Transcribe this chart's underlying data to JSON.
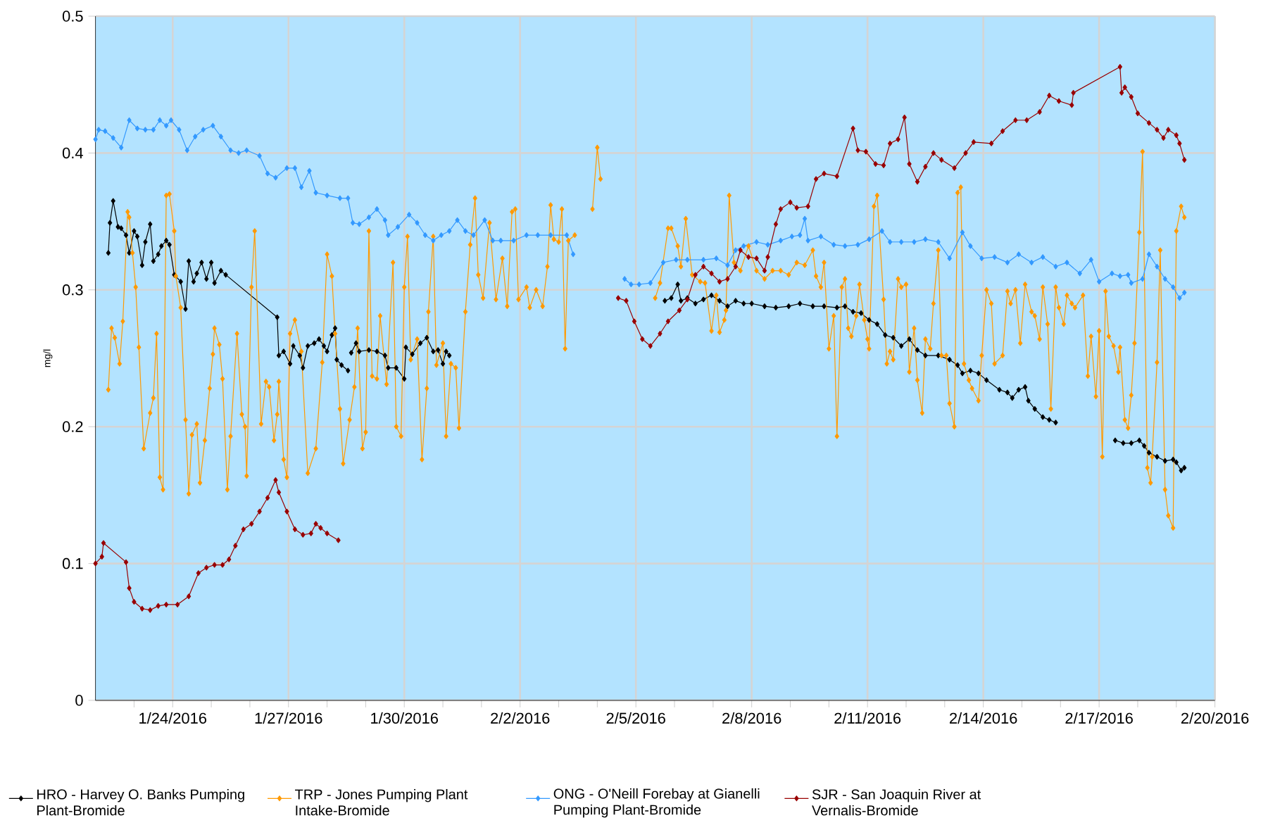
{
  "chart_data": {
    "type": "line",
    "ylabel": "mg/l",
    "xlim": [
      "2016-01-22",
      "2016-02-20"
    ],
    "xticks": [
      {
        "value": "2016-01-23",
        "label": null
      },
      {
        "value": "2016-01-24",
        "label": "1/24/2016"
      },
      {
        "value": "2016-01-25",
        "label": null
      },
      {
        "value": "2016-01-26",
        "label": null
      },
      {
        "value": "2016-01-27",
        "label": "1/27/2016"
      },
      {
        "value": "2016-01-28",
        "label": null
      },
      {
        "value": "2016-01-29",
        "label": null
      },
      {
        "value": "2016-01-30",
        "label": "1/30/2016"
      },
      {
        "value": "2016-01-31",
        "label": null
      },
      {
        "value": "2016-02-01",
        "label": null
      },
      {
        "value": "2016-02-02",
        "label": "2/2/2016"
      },
      {
        "value": "2016-02-03",
        "label": null
      },
      {
        "value": "2016-02-04",
        "label": null
      },
      {
        "value": "2016-02-05",
        "label": "2/5/2016"
      },
      {
        "value": "2016-02-06",
        "label": null
      },
      {
        "value": "2016-02-07",
        "label": null
      },
      {
        "value": "2016-02-08",
        "label": "2/8/2016"
      },
      {
        "value": "2016-02-09",
        "label": null
      },
      {
        "value": "2016-02-10",
        "label": null
      },
      {
        "value": "2016-02-11",
        "label": "2/11/2016"
      },
      {
        "value": "2016-02-12",
        "label": null
      },
      {
        "value": "2016-02-13",
        "label": null
      },
      {
        "value": "2016-02-14",
        "label": "2/14/2016"
      },
      {
        "value": "2016-02-15",
        "label": null
      },
      {
        "value": "2016-02-16",
        "label": null
      },
      {
        "value": "2016-02-17",
        "label": "2/17/2016"
      },
      {
        "value": "2016-02-18",
        "label": null
      },
      {
        "value": "2016-02-19",
        "label": null
      },
      {
        "value": "2016-02-20",
        "label": "2/20/2016"
      }
    ],
    "ylim": [
      0,
      0.5
    ],
    "yticks": [
      0,
      0.1,
      0.2,
      0.3,
      0.4,
      0.5
    ],
    "grid": true,
    "legend": "bottom",
    "marker": "diamond",
    "line_style": "solid",
    "series": [
      {
        "name": "HRO - Harvey O. Banks Pumping Plant-Bromide",
        "color": "#000000",
        "x": [
          "2016-01-22T08:00",
          "2016-01-22T09:00",
          "2016-01-22T11:00",
          "2016-01-22T14:00",
          "2016-01-22T16:00",
          "2016-01-22T19:00",
          "2016-01-22T21:00",
          "2016-01-23T00:00",
          "2016-01-23T02:00",
          "2016-01-23T05:00",
          "2016-01-23T07:00",
          "2016-01-23T10:00",
          "2016-01-23T12:00",
          "2016-01-23T15:00",
          "2016-01-23T17:00",
          "2016-01-23T20:00",
          "2016-01-23T22:00",
          "2016-01-24T01:00",
          "2016-01-24T05:00",
          "2016-01-24T08:00",
          "2016-01-24T10:00",
          "2016-01-24T13:00",
          "2016-01-24T15:00",
          "2016-01-24T18:00",
          "2016-01-24T21:00",
          "2016-01-25T00:00",
          "2016-01-25T02:00",
          "2016-01-25T06:00",
          "2016-01-25T09:00",
          "2016-01-26T17:00",
          "2016-01-26T18:00",
          "2016-01-26T21:00",
          "2016-01-27T01:00",
          "2016-01-27T03:00",
          "2016-01-27T07:00",
          "2016-01-27T09:00",
          "2016-01-27T12:00",
          "2016-01-27T16:00",
          "2016-01-27T19:00",
          "2016-01-27T22:00",
          "2016-01-28T00:00",
          "2016-01-28T03:00",
          "2016-01-28T05:00",
          "2016-01-28T06:00",
          "2016-01-28T09:00",
          "2016-01-28T13:00",
          "2016-01-28T14:00",
          "2016-01-28T15:00",
          "2016-01-28T18:00",
          "2016-01-28T20:00",
          "2016-01-29T02:00",
          "2016-01-29T07:00",
          "2016-01-29T12:00",
          "2016-01-29T14:00",
          "2016-01-29T19:00",
          "2016-01-30T00:00",
          "2016-01-30T01:00",
          "2016-01-30T05:00",
          "2016-01-30T10:00",
          "2016-01-30T14:00",
          "2016-01-30T18:00",
          "2016-01-30T21:00",
          "2016-01-31T00:00",
          "2016-01-31T02:00",
          "2016-01-31T04:00",
          "2016-02-03T00:00",
          "2016-02-05T18:00",
          "2016-02-05T22:00",
          "2016-02-06T02:00",
          "2016-02-06T04:00",
          "2016-02-06T08:00",
          "2016-02-06T13:00",
          "2016-02-06T18:00",
          "2016-02-06T23:00",
          "2016-02-07T04:00",
          "2016-02-07T09:00",
          "2016-02-07T14:00",
          "2016-02-07T19:00",
          "2016-02-08T00:00",
          "2016-02-08T08:00",
          "2016-02-08T15:00",
          "2016-02-08T23:00",
          "2016-02-09T06:00",
          "2016-02-09T14:00",
          "2016-02-09T21:00",
          "2016-02-10T05:00",
          "2016-02-10T10:00",
          "2016-02-10T15:00",
          "2016-02-10T20:00",
          "2016-02-11T01:00",
          "2016-02-11T06:00",
          "2016-02-11T11:00",
          "2016-02-11T16:00",
          "2016-02-11T21:00",
          "2016-02-12T02:00",
          "2016-02-12T07:00",
          "2016-02-12T12:00",
          "2016-02-12T20:00",
          "2016-02-13T03:00",
          "2016-02-13T08:00",
          "2016-02-13T11:00",
          "2016-02-13T16:00",
          "2016-02-13T21:00",
          "2016-02-14T02:00",
          "2016-02-14T10:00",
          "2016-02-14T15:00",
          "2016-02-14T18:00",
          "2016-02-14T22:00",
          "2016-02-15T02:00",
          "2016-02-15T04:00",
          "2016-02-15T08:00",
          "2016-02-15T13:00",
          "2016-02-15T17:00",
          "2016-02-15T21:00",
          "2016-02-16T12:00",
          "2016-02-17T10:00",
          "2016-02-17T15:00",
          "2016-02-17T20:00",
          "2016-02-18T01:00",
          "2016-02-18T04:00",
          "2016-02-18T07:00",
          "2016-02-18T12:00",
          "2016-02-18T17:00",
          "2016-02-18T22:00",
          "2016-02-19T00:00",
          "2016-02-19T03:00",
          "2016-02-19T05:00"
        ],
        "values": [
          0.327,
          0.349,
          0.365,
          0.346,
          0.345,
          0.34,
          0.327,
          0.343,
          0.339,
          0.318,
          0.335,
          0.348,
          0.321,
          0.326,
          0.332,
          0.336,
          0.333,
          0.311,
          0.306,
          0.286,
          0.321,
          0.306,
          0.312,
          0.32,
          0.308,
          0.32,
          0.305,
          0.314,
          0.311,
          0.28,
          0.252,
          0.255,
          0.246,
          0.259,
          0.252,
          0.243,
          0.259,
          0.261,
          0.264,
          0.259,
          0.255,
          0.267,
          0.272,
          0.249,
          0.245,
          0.241,
          null,
          0.254,
          0.261,
          0.255,
          0.256,
          0.255,
          0.252,
          0.243,
          0.243,
          0.235,
          0.258,
          0.253,
          0.261,
          0.265,
          0.255,
          0.256,
          0.246,
          0.255,
          0.252,
          null,
          0.292,
          0.294,
          0.304,
          0.292,
          0.294,
          0.29,
          0.293,
          0.296,
          0.292,
          0.288,
          0.292,
          0.29,
          0.29,
          0.288,
          0.287,
          0.288,
          0.29,
          0.288,
          0.288,
          0.287,
          0.288,
          0.284,
          0.283,
          0.278,
          0.275,
          0.267,
          0.265,
          0.259,
          0.264,
          0.256,
          0.252,
          0.252,
          0.249,
          0.245,
          0.239,
          0.241,
          0.239,
          0.234,
          0.227,
          0.225,
          0.221,
          0.227,
          0.229,
          0.219,
          0.213,
          0.207,
          0.205,
          0.203,
          null,
          0.19,
          0.188,
          0.188,
          0.19,
          0.186,
          0.181,
          0.178,
          0.175,
          0.176,
          0.174,
          0.168,
          0.17
        ]
      },
      {
        "name": "TRP - Jones Pumping Plant Intake-Bromide",
        "color": "#ff9900",
        "x": [
          "2016-01-22T08:00",
          "2016-01-22T10:00",
          "2016-01-22T12:00",
          "2016-01-22T15:00",
          "2016-01-22T17:00",
          "2016-01-22T20:00",
          "2016-01-22T21:00",
          "2016-01-22T23:00",
          "2016-01-23T01:00",
          "2016-01-23T03:00",
          "2016-01-23T06:00",
          "2016-01-23T10:00",
          "2016-01-23T12:00",
          "2016-01-23T14:00",
          "2016-01-23T16:00",
          "2016-01-23T18:00",
          "2016-01-23T20:00",
          "2016-01-23T22:00",
          "2016-01-24T01:00",
          "2016-01-24T02:00",
          "2016-01-24T05:00",
          "2016-01-24T08:00",
          "2016-01-24T10:00",
          "2016-01-24T12:00",
          "2016-01-24T15:00",
          "2016-01-24T17:00",
          "2016-01-24T20:00",
          "2016-01-24T23:00",
          "2016-01-25T01:00",
          "2016-01-25T02:00",
          "2016-01-25T05:00",
          "2016-01-25T07:00",
          "2016-01-25T10:00",
          "2016-01-25T12:00",
          "2016-01-25T16:00",
          "2016-01-25T19:00",
          "2016-01-25T21:00",
          "2016-01-25T22:00",
          "2016-01-26T01:00",
          "2016-01-26T03:00",
          "2016-01-26T07:00",
          "2016-01-26T10:00",
          "2016-01-26T12:00",
          "2016-01-26T15:00",
          "2016-01-26T17:00",
          "2016-01-26T18:00",
          "2016-01-26T21:00",
          "2016-01-26T23:00",
          "2016-01-27T01:00",
          "2016-01-27T04:00",
          "2016-01-27T08:00",
          "2016-01-27T12:00",
          "2016-01-27T17:00",
          "2016-01-27T21:00",
          "2016-01-28T00:00",
          "2016-01-28T03:00",
          "2016-01-28T05:00",
          "2016-01-28T08:00",
          "2016-01-28T10:00",
          "2016-01-28T14:00",
          "2016-01-28T17:00",
          "2016-01-28T19:00",
          "2016-01-28T22:00",
          "2016-01-29T00:00",
          "2016-01-29T02:00",
          "2016-01-29T04:00",
          "2016-01-29T07:00",
          "2016-01-29T09:00",
          "2016-01-29T13:00",
          "2016-01-29T17:00",
          "2016-01-29T19:00",
          "2016-01-29T22:00",
          "2016-01-30T00:00",
          "2016-01-30T02:00",
          "2016-01-30T04:00",
          "2016-01-30T08:00",
          "2016-01-30T11:00",
          "2016-01-30T14:00",
          "2016-01-30T15:00",
          "2016-01-30T18:00",
          "2016-01-30T20:00",
          "2016-01-31T00:00",
          "2016-01-31T02:00",
          "2016-01-31T05:00",
          "2016-01-31T08:00",
          "2016-01-31T10:00",
          "2016-01-31T14:00",
          "2016-01-31T17:00",
          "2016-01-31T20:00",
          "2016-01-31T22:00",
          "2016-02-01T01:00",
          "2016-02-01T05:00",
          "2016-02-01T09:00",
          "2016-02-01T13:00",
          "2016-02-01T16:00",
          "2016-02-01T19:00",
          "2016-02-01T21:00",
          "2016-02-01T23:00",
          "2016-02-02T04:00",
          "2016-02-02T06:00",
          "2016-02-02T10:00",
          "2016-02-02T14:00",
          "2016-02-02T17:00",
          "2016-02-02T19:00",
          "2016-02-02T21:00",
          "2016-02-03T00:00",
          "2016-02-03T02:00",
          "2016-02-03T04:00",
          "2016-02-03T06:00",
          "2016-02-03T10:00",
          "2016-02-03T20:00",
          "2016-02-03T21:00",
          "2016-02-04T00:00",
          "2016-02-04T02:00",
          "2016-02-04T12:00",
          "2016-02-05T12:00",
          "2016-02-05T15:00",
          "2016-02-05T20:00",
          "2016-02-05T22:00",
          "2016-02-06T02:00",
          "2016-02-06T04:00",
          "2016-02-06T07:00",
          "2016-02-06T11:00",
          "2016-02-06T16:00",
          "2016-02-06T19:00",
          "2016-02-06T23:00",
          "2016-02-07T02:00",
          "2016-02-07T04:00",
          "2016-02-07T07:00",
          "2016-02-07T08:00",
          "2016-02-07T10:00",
          "2016-02-07T13:00",
          "2016-02-07T17:00",
          "2016-02-07T22:00",
          "2016-02-08T03:00",
          "2016-02-08T08:00",
          "2016-02-08T13:00",
          "2016-02-08T18:00",
          "2016-02-08T23:00",
          "2016-02-09T04:00",
          "2016-02-09T09:00",
          "2016-02-09T14:00",
          "2016-02-09T16:00",
          "2016-02-09T19:00",
          "2016-02-09T21:00",
          "2016-02-10T00:00",
          "2016-02-10T03:00",
          "2016-02-10T05:00",
          "2016-02-10T08:00",
          "2016-02-10T10:00",
          "2016-02-10T12:00",
          "2016-02-10T14:00",
          "2016-02-10T17:00",
          "2016-02-10T19:00",
          "2016-02-10T22:00",
          "2016-02-11T00:00",
          "2016-02-11T01:00",
          "2016-02-11T04:00",
          "2016-02-11T06:00",
          "2016-02-11T10:00",
          "2016-02-11T12:00",
          "2016-02-11T14:00",
          "2016-02-11T16:00",
          "2016-02-11T19:00",
          "2016-02-11T21:00",
          "2016-02-12T00:00",
          "2016-02-12T02:00",
          "2016-02-12T05:00",
          "2016-02-12T07:00",
          "2016-02-12T10:00",
          "2016-02-12T12:00",
          "2016-02-12T15:00",
          "2016-02-12T17:00",
          "2016-02-12T20:00",
          "2016-02-12T22:00",
          "2016-02-13T01:00",
          "2016-02-13T03:00",
          "2016-02-13T06:00",
          "2016-02-13T08:00",
          "2016-02-13T10:00",
          "2016-02-13T12:00",
          "2016-02-13T15:00",
          "2016-02-13T17:00",
          "2016-02-13T21:00",
          "2016-02-13T23:00",
          "2016-02-14T02:00",
          "2016-02-14T05:00",
          "2016-02-14T07:00",
          "2016-02-14T12:00",
          "2016-02-14T15:00",
          "2016-02-14T17:00",
          "2016-02-14T20:00",
          "2016-02-14T23:00",
          "2016-02-15T02:00",
          "2016-02-15T06:00",
          "2016-02-15T08:00",
          "2016-02-15T11:00",
          "2016-02-15T13:00",
          "2016-02-15T16:00",
          "2016-02-15T18:00",
          "2016-02-15T21:00",
          "2016-02-15T23:00",
          "2016-02-16T02:00",
          "2016-02-16T04:00",
          "2016-02-16T07:00",
          "2016-02-16T09:00",
          "2016-02-16T14:00",
          "2016-02-16T17:00",
          "2016-02-16T19:00",
          "2016-02-16T22:00",
          "2016-02-17T00:00",
          "2016-02-17T02:00",
          "2016-02-17T04:00",
          "2016-02-17T06:00",
          "2016-02-17T09:00",
          "2016-02-17T12:00",
          "2016-02-17T13:00",
          "2016-02-17T16:00",
          "2016-02-17T18:00",
          "2016-02-17T20:00",
          "2016-02-17T22:00",
          "2016-02-18T01:00",
          "2016-02-18T03:00",
          "2016-02-18T06:00",
          "2016-02-18T08:00",
          "2016-02-18T09:00",
          "2016-02-18T12:00",
          "2016-02-18T14:00",
          "2016-02-18T17:00",
          "2016-02-18T19:00",
          "2016-02-18T22:00",
          "2016-02-19T00:00",
          "2016-02-19T03:00",
          "2016-02-19T05:00"
        ],
        "values": [
          0.227,
          0.272,
          0.265,
          0.246,
          0.277,
          0.357,
          0.353,
          0.327,
          0.302,
          0.258,
          0.184,
          0.21,
          0.221,
          0.268,
          0.163,
          0.154,
          0.369,
          0.37,
          0.343,
          0.31,
          0.287,
          0.205,
          0.151,
          0.194,
          0.202,
          0.159,
          0.19,
          0.228,
          0.253,
          0.272,
          0.26,
          0.235,
          0.154,
          0.193,
          0.268,
          0.209,
          0.2,
          0.164,
          0.302,
          0.343,
          0.202,
          0.233,
          0.229,
          0.19,
          0.209,
          0.233,
          0.176,
          0.163,
          0.268,
          0.278,
          0.255,
          0.166,
          0.184,
          0.247,
          0.326,
          0.31,
          0.268,
          0.213,
          0.173,
          0.205,
          0.229,
          0.272,
          0.184,
          0.196,
          0.343,
          0.237,
          0.235,
          0.281,
          0.231,
          0.32,
          0.2,
          0.193,
          0.302,
          0.339,
          0.249,
          0.264,
          0.176,
          0.228,
          0.284,
          0.339,
          0.245,
          0.261,
          0.193,
          0.246,
          0.243,
          0.199,
          0.284,
          0.333,
          0.367,
          0.311,
          0.294,
          0.349,
          0.293,
          0.323,
          0.288,
          0.357,
          0.359,
          0.293,
          0.302,
          0.287,
          0.3,
          0.288,
          0.317,
          0.362,
          0.337,
          0.335,
          0.359,
          0.257,
          0.336,
          0.34,
          null,
          0.359,
          0.404,
          0.381,
          null,
          0.294,
          0.305,
          0.345,
          0.345,
          0.332,
          0.317,
          0.352,
          0.311,
          0.306,
          0.305,
          0.27,
          0.296,
          0.269,
          0.278,
          0.285,
          0.369,
          0.32,
          0.314,
          0.332,
          0.314,
          0.308,
          0.314,
          0.314,
          0.311,
          0.32,
          0.318,
          0.329,
          0.31,
          0.302,
          0.32,
          0.257,
          0.281,
          0.193,
          0.302,
          0.308,
          0.272,
          0.266,
          0.281,
          0.304,
          0.278,
          0.264,
          0.257,
          0.361,
          0.369,
          0.293,
          0.246,
          0.255,
          0.249,
          0.308,
          0.302,
          0.304,
          0.24,
          0.272,
          0.234,
          0.21,
          0.264,
          0.257,
          0.29,
          0.329,
          0.252,
          0.252,
          0.217,
          0.2,
          0.371,
          0.375,
          0.246,
          0.234,
          0.228,
          0.219,
          0.252,
          0.3,
          0.29,
          0.246,
          0.252,
          0.299,
          0.29,
          0.3,
          0.261,
          0.304,
          0.284,
          0.281,
          0.264,
          0.302,
          0.275,
          0.213,
          0.302,
          0.287,
          0.275,
          0.296,
          0.29,
          0.287,
          0.296,
          0.237,
          0.266,
          0.222,
          0.27,
          0.178,
          0.299,
          0.266,
          0.259,
          0.24,
          0.258,
          0.205,
          0.199,
          0.223,
          0.261,
          0.342,
          0.401,
          0.17,
          0.159,
          0.178,
          0.247,
          0.329,
          0.154,
          0.135,
          0.126,
          0.343,
          0.361,
          0.353
        ]
      },
      {
        "name": "ONG - O'Neill Forebay at Gianelli Pumping Plant-Bromide",
        "color": "#3399ff",
        "x": [
          "2016-01-22T00:00",
          "2016-01-22T02:00",
          "2016-01-22T06:00",
          "2016-01-22T11:00",
          "2016-01-22T16:00",
          "2016-01-22T21:00",
          "2016-01-23T02:00",
          "2016-01-23T07:00",
          "2016-01-23T12:00",
          "2016-01-23T16:00",
          "2016-01-23T20:00",
          "2016-01-23T23:00",
          "2016-01-24T04:00",
          "2016-01-24T09:00",
          "2016-01-24T14:00",
          "2016-01-24T19:00",
          "2016-01-25T01:00",
          "2016-01-25T06:00",
          "2016-01-25T12:00",
          "2016-01-25T17:00",
          "2016-01-25T22:00",
          "2016-01-26T06:00",
          "2016-01-26T11:00",
          "2016-01-26T16:00",
          "2016-01-26T23:00",
          "2016-01-27T04:00",
          "2016-01-27T08:00",
          "2016-01-27T13:00",
          "2016-01-27T17:00",
          "2016-01-28T00:00",
          "2016-01-28T08:00",
          "2016-01-28T13:00",
          "2016-01-28T16:00",
          "2016-01-28T20:00",
          "2016-01-29T02:00",
          "2016-01-29T07:00",
          "2016-01-29T12:00",
          "2016-01-29T14:00",
          "2016-01-29T20:00",
          "2016-01-30T03:00",
          "2016-01-30T08:00",
          "2016-01-30T13:00",
          "2016-01-30T18:00",
          "2016-01-30T23:00",
          "2016-01-31T04:00",
          "2016-01-31T09:00",
          "2016-01-31T14:00",
          "2016-01-31T19:00",
          "2016-02-01T02:00",
          "2016-02-01T07:00",
          "2016-02-01T12:00",
          "2016-02-01T20:00",
          "2016-02-02T04:00",
          "2016-02-02T11:00",
          "2016-02-02T19:00",
          "2016-02-03T05:00",
          "2016-02-03T09:00",
          "2016-02-04T00:00",
          "2016-02-04T17:00",
          "2016-02-04T21:00",
          "2016-02-05T02:00",
          "2016-02-05T09:00",
          "2016-02-05T17:00",
          "2016-02-06T01:00",
          "2016-02-06T08:00",
          "2016-02-06T18:00",
          "2016-02-07T02:00",
          "2016-02-07T09:00",
          "2016-02-07T14:00",
          "2016-02-07T19:00",
          "2016-02-08T03:00",
          "2016-02-08T10:00",
          "2016-02-08T18:00",
          "2016-02-09T01:00",
          "2016-02-09T06:00",
          "2016-02-09T09:00",
          "2016-02-09T11:00",
          "2016-02-09T19:00",
          "2016-02-10T03:00",
          "2016-02-10T10:00",
          "2016-02-10T18:00",
          "2016-02-11T01:00",
          "2016-02-11T09:00",
          "2016-02-11T14:00",
          "2016-02-11T21:00",
          "2016-02-12T05:00",
          "2016-02-12T12:00",
          "2016-02-12T20:00",
          "2016-02-13T03:00",
          "2016-02-13T11:00",
          "2016-02-13T16:00",
          "2016-02-13T23:00",
          "2016-02-14T07:00",
          "2016-02-14T15:00",
          "2016-02-14T22:00",
          "2016-02-15T06:00",
          "2016-02-15T13:00",
          "2016-02-15T21:00",
          "2016-02-16T04:00",
          "2016-02-16T12:00",
          "2016-02-16T19:00",
          "2016-02-17T00:00",
          "2016-02-17T08:00",
          "2016-02-17T13:00",
          "2016-02-17T18:00",
          "2016-02-17T20:00",
          "2016-02-18T03:00",
          "2016-02-18T07:00",
          "2016-02-18T12:00",
          "2016-02-18T17:00",
          "2016-02-18T22:00",
          "2016-02-19T02:00",
          "2016-02-19T05:00"
        ],
        "values": [
          0.41,
          0.417,
          0.416,
          0.411,
          0.404,
          0.424,
          0.418,
          0.417,
          0.417,
          0.424,
          0.42,
          0.424,
          0.417,
          0.402,
          0.412,
          0.417,
          0.42,
          0.412,
          0.402,
          0.4,
          0.402,
          0.398,
          0.385,
          0.382,
          0.389,
          0.389,
          0.375,
          0.387,
          0.371,
          0.369,
          0.367,
          0.367,
          0.349,
          0.348,
          0.353,
          0.359,
          0.351,
          0.34,
          0.346,
          0.355,
          0.349,
          0.34,
          0.336,
          0.34,
          0.343,
          0.351,
          0.343,
          0.34,
          0.351,
          0.336,
          0.336,
          0.336,
          0.34,
          0.34,
          0.34,
          0.34,
          0.326,
          null,
          0.308,
          0.304,
          0.304,
          0.305,
          0.32,
          0.322,
          0.322,
          0.322,
          0.323,
          0.318,
          0.329,
          0.332,
          0.335,
          0.333,
          0.336,
          0.339,
          0.34,
          0.352,
          0.336,
          0.339,
          0.333,
          0.332,
          0.333,
          0.337,
          0.343,
          0.335,
          0.335,
          0.335,
          0.337,
          0.335,
          0.323,
          0.342,
          0.332,
          0.323,
          0.324,
          0.32,
          0.326,
          0.32,
          0.324,
          0.317,
          0.32,
          0.312,
          0.322,
          0.306,
          0.312,
          0.31,
          0.311,
          0.305,
          0.308,
          0.326,
          0.317,
          0.308,
          0.302,
          0.294,
          0.298
        ]
      },
      {
        "name": "SJR - San Joaquin River at Vernalis-Bromide",
        "color": "#990000",
        "x": [
          "2016-01-22T00:00",
          "2016-01-22T04:00",
          "2016-01-22T05:00",
          "2016-01-22T19:00",
          "2016-01-22T21:00",
          "2016-01-23T00:00",
          "2016-01-23T05:00",
          "2016-01-23T10:00",
          "2016-01-23T15:00",
          "2016-01-23T20:00",
          "2016-01-24T03:00",
          "2016-01-24T10:00",
          "2016-01-24T16:00",
          "2016-01-24T21:00",
          "2016-01-25T02:00",
          "2016-01-25T07:00",
          "2016-01-25T11:00",
          "2016-01-25T15:00",
          "2016-01-25T20:00",
          "2016-01-26T01:00",
          "2016-01-26T06:00",
          "2016-01-26T11:00",
          "2016-01-26T16:00",
          "2016-01-26T18:00",
          "2016-01-26T23:00",
          "2016-01-27T04:00",
          "2016-01-27T09:00",
          "2016-01-27T14:00",
          "2016-01-27T17:00",
          "2016-01-27T20:00",
          "2016-01-28T00:00",
          "2016-01-28T07:00",
          "2016-01-29T00:00",
          "2016-02-04T13:00",
          "2016-02-04T18:00",
          "2016-02-04T23:00",
          "2016-02-05T04:00",
          "2016-02-05T09:00",
          "2016-02-05T15:00",
          "2016-02-05T20:00",
          "2016-02-06T03:00",
          "2016-02-06T08:00",
          "2016-02-06T13:00",
          "2016-02-06T18:00",
          "2016-02-06T23:00",
          "2016-02-07T04:00",
          "2016-02-07T09:00",
          "2016-02-07T14:00",
          "2016-02-07T17:00",
          "2016-02-07T22:00",
          "2016-02-08T03:00",
          "2016-02-08T08:00",
          "2016-02-08T10:00",
          "2016-02-08T15:00",
          "2016-02-08T18:00",
          "2016-02-09T00:00",
          "2016-02-09T04:00",
          "2016-02-09T11:00",
          "2016-02-09T16:00",
          "2016-02-09T21:00",
          "2016-02-10T05:00",
          "2016-02-10T15:00",
          "2016-02-10T18:00",
          "2016-02-10T23:00",
          "2016-02-11T05:00",
          "2016-02-11T10:00",
          "2016-02-11T14:00",
          "2016-02-11T19:00",
          "2016-02-11T23:00",
          "2016-02-12T02:00",
          "2016-02-12T07:00",
          "2016-02-12T12:00",
          "2016-02-12T17:00",
          "2016-02-12T22:00",
          "2016-02-13T06:00",
          "2016-02-13T13:00",
          "2016-02-13T18:00",
          "2016-02-14T05:00",
          "2016-02-14T12:00",
          "2016-02-14T20:00",
          "2016-02-15T03:00",
          "2016-02-15T11:00",
          "2016-02-15T17:00",
          "2016-02-15T23:00",
          "2016-02-16T07:00",
          "2016-02-16T08:00",
          "2016-02-17T13:00",
          "2016-02-17T14:00",
          "2016-02-17T16:00",
          "2016-02-17T20:00",
          "2016-02-18T00:00",
          "2016-02-18T07:00",
          "2016-02-18T12:00",
          "2016-02-18T16:00",
          "2016-02-18T19:00",
          "2016-02-19T00:00",
          "2016-02-19T02:00",
          "2016-02-19T05:00"
        ],
        "values": [
          0.1,
          0.105,
          0.115,
          0.101,
          0.082,
          0.072,
          0.067,
          0.066,
          0.069,
          0.07,
          0.07,
          0.076,
          0.093,
          0.097,
          0.099,
          0.099,
          0.103,
          0.113,
          0.125,
          0.129,
          0.138,
          0.148,
          0.161,
          0.152,
          0.138,
          0.125,
          0.121,
          0.122,
          0.129,
          0.126,
          0.122,
          0.117,
          null,
          0.294,
          0.292,
          0.277,
          0.264,
          0.259,
          0.268,
          0.277,
          0.285,
          0.293,
          0.311,
          0.317,
          0.312,
          0.306,
          0.308,
          0.317,
          0.329,
          0.324,
          0.323,
          0.314,
          0.324,
          0.348,
          0.359,
          0.364,
          0.36,
          0.361,
          0.381,
          0.385,
          0.383,
          0.418,
          0.402,
          0.401,
          0.392,
          0.391,
          0.407,
          0.41,
          0.426,
          0.392,
          0.379,
          0.39,
          0.4,
          0.395,
          0.389,
          0.4,
          0.408,
          0.407,
          0.416,
          0.424,
          0.424,
          0.43,
          0.442,
          0.438,
          0.435,
          0.444,
          0.463,
          0.444,
          0.448,
          0.441,
          0.429,
          0.422,
          0.417,
          0.411,
          0.417,
          0.413,
          0.407,
          0.395
        ]
      }
    ]
  }
}
